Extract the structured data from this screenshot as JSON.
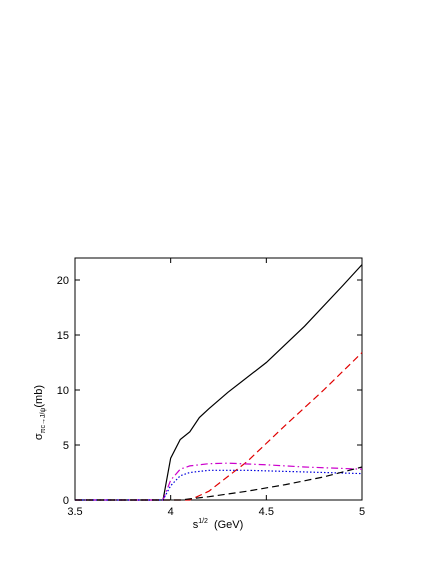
{
  "chart_data": {
    "type": "line",
    "y_label": "σ",
    "y_label_sub": "πc→J/ψ",
    "y_label_unit": "(mb)",
    "x_label": "s",
    "x_label_sup": "1/2",
    "x_label_unit": "(GeV)",
    "xlim": [
      3.5,
      5
    ],
    "xticks": [
      3.5,
      4,
      4.5,
      5
    ],
    "ylim": [
      0,
      22
    ],
    "yticks": [
      0,
      5,
      10,
      15,
      20
    ],
    "series": [
      {
        "color": "#000000",
        "dash": "solid",
        "x": [
          3.5,
          3.96,
          4.0,
          4.05,
          4.1,
          4.15,
          4.2,
          4.3,
          4.5,
          4.7,
          4.9,
          5.0
        ],
        "values": [
          0,
          0,
          3.8,
          5.5,
          6.2,
          7.5,
          8.3,
          9.8,
          12.5,
          15.8,
          19.5,
          21.4
        ]
      },
      {
        "color": "#e00000",
        "dash": "dashed",
        "x": [
          3.5,
          4.1,
          4.2,
          4.4,
          4.6,
          4.8,
          5.0
        ],
        "values": [
          0,
          0,
          0.8,
          3.5,
          6.8,
          10.0,
          13.4
        ]
      },
      {
        "color": "#cc00cc",
        "dash": "dashdot",
        "x": [
          3.5,
          3.96,
          4.0,
          4.05,
          4.1,
          4.2,
          4.3,
          4.5,
          4.7,
          5.0
        ],
        "values": [
          0,
          0,
          1.8,
          2.8,
          3.1,
          3.3,
          3.35,
          3.2,
          3.0,
          2.8
        ]
      },
      {
        "color": "#0000dd",
        "dash": "dotted",
        "x": [
          3.5,
          3.96,
          4.0,
          4.05,
          4.1,
          4.2,
          4.4,
          4.6,
          5.0
        ],
        "values": [
          0,
          0,
          1.3,
          2.2,
          2.5,
          2.7,
          2.7,
          2.6,
          2.4
        ]
      },
      {
        "color": "#000000",
        "dash": "dashed",
        "x": [
          3.5,
          4.05,
          4.2,
          4.4,
          4.6,
          4.8,
          5.0
        ],
        "values": [
          0,
          0,
          0.3,
          0.8,
          1.4,
          2.1,
          3.0
        ]
      }
    ]
  }
}
